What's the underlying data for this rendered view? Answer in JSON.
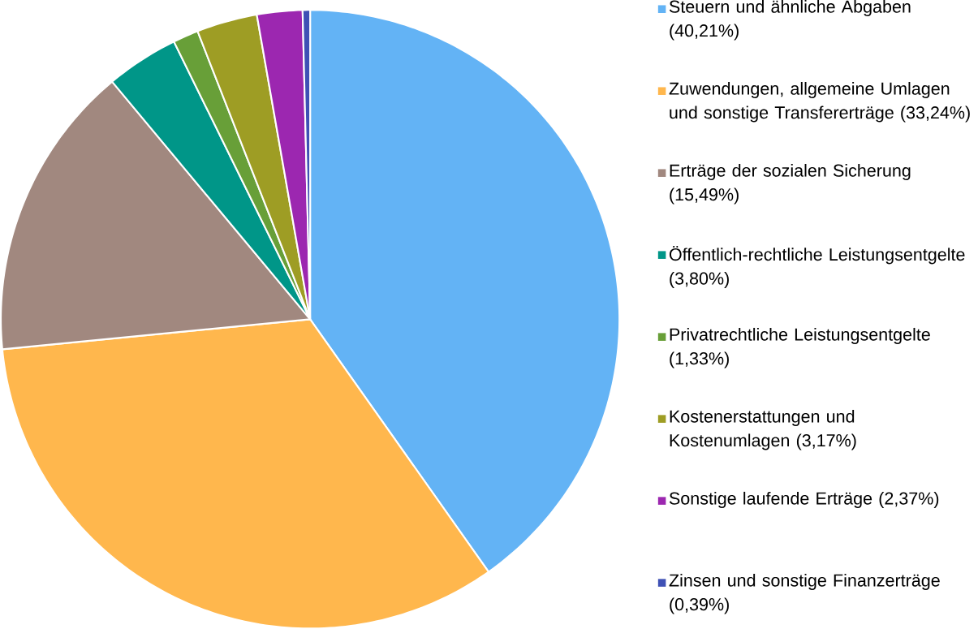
{
  "chart_data": {
    "type": "pie",
    "categories": [
      "Steuern und ähnliche Abgaben (40,21%)",
      "Zuwendungen, allgemeine Umlagen und sonstige Transfererträge (33,24%)",
      "Erträge der sozialen Sicherung (15,49%)",
      "Öffentlich-rechtliche Leistungsentgelte (3,80%)",
      "Privatrechtliche Leistungsentgelte (1,33%)",
      "Kostenerstattungen und Kostenumlagen (3,17%)",
      "Sonstige laufende Erträge (2,37%)",
      "Zinsen und sonstige Finanzerträge (0,39%)"
    ],
    "values": [
      40.21,
      33.24,
      15.49,
      3.8,
      1.33,
      3.17,
      2.37,
      0.39
    ],
    "colors": [
      "#63b3f5",
      "#ffb74d",
      "#a1887f",
      "#009688",
      "#689f38",
      "#9e9d24",
      "#9c27b0",
      "#3f51b5"
    ],
    "legend": "right"
  }
}
